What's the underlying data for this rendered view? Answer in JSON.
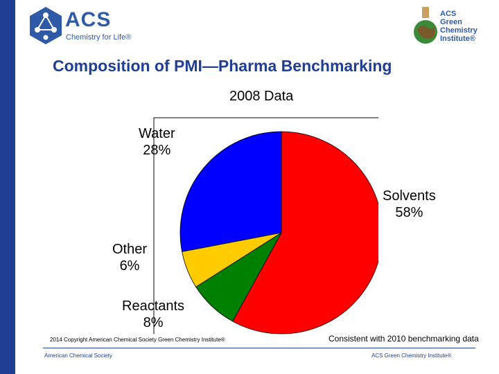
{
  "header": {
    "acs_logo": {
      "word": "ACS",
      "tagline": "Chemistry for Life®"
    },
    "gci_logo": {
      "text": "ACS\nGreen\nChemistry\nInstitute®"
    },
    "title": "Composition of PMI—Pharma Benchmarking",
    "subtitle": "2008 Data"
  },
  "colors": {
    "primary": "#1f3e94",
    "solvents": "#ff0000",
    "water": "#0000ff",
    "other": "#ffcc00",
    "reactants": "#008000"
  },
  "chart_data": {
    "type": "pie",
    "title": "2008 Data",
    "slices": [
      {
        "label": "Solvents",
        "value": 58,
        "display": "58%",
        "color": "#ff0000"
      },
      {
        "label": "Reactants",
        "value": 8,
        "display": "8%",
        "color": "#008000"
      },
      {
        "label": "Other",
        "value": 6,
        "display": "6%",
        "color": "#ffcc00"
      },
      {
        "label": "Water",
        "value": 28,
        "display": "28%",
        "color": "#0000ff"
      }
    ],
    "legend": "none"
  },
  "notes": {
    "benchmark": "Consistent with 2010 benchmarking data",
    "copyright": "2014 Copyright American Chemical Society Green Chemistry Institute®"
  },
  "footer": {
    "left": "American Chemical Society",
    "right": "ACS Green Chemistry Institute®"
  }
}
